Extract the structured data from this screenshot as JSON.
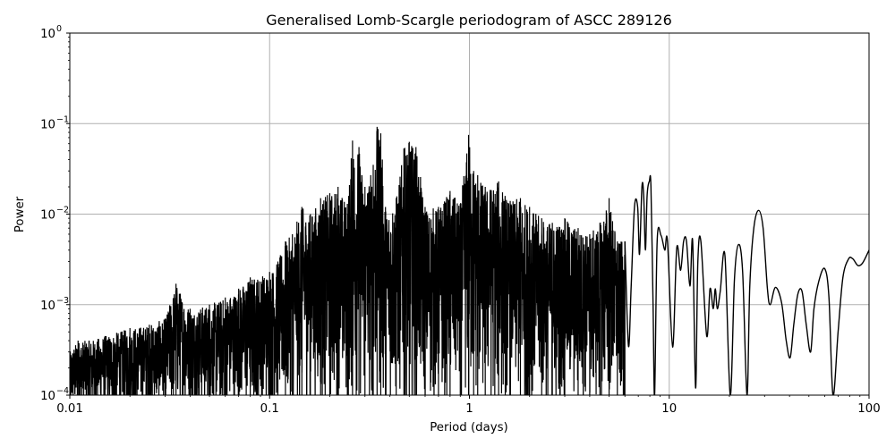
{
  "chart_data": {
    "type": "line",
    "title": "Generalised Lomb-Scargle periodogram of ASCC 289126",
    "xlabel": "Period (days)",
    "ylabel": "Power",
    "xscale": "log",
    "yscale": "log",
    "xlim": [
      0.01,
      100
    ],
    "ylim": [
      0.0001,
      1
    ],
    "grid": true,
    "legend": null,
    "xticks": [
      {
        "value": 0.01,
        "label": "0.01"
      },
      {
        "value": 0.1,
        "label": "0.1"
      },
      {
        "value": 1,
        "label": "1"
      },
      {
        "value": 10,
        "label": "10"
      },
      {
        "value": 100,
        "label": "100"
      }
    ],
    "yticks": [
      {
        "value": 1,
        "base": "10",
        "exp": "0"
      },
      {
        "value": 0.1,
        "base": "10",
        "exp": "−1"
      },
      {
        "value": 0.01,
        "base": "10",
        "exp": "−2"
      },
      {
        "value": 0.001,
        "base": "10",
        "exp": "−3"
      },
      {
        "value": 0.0001,
        "base": "10",
        "exp": "−4"
      }
    ],
    "line_color": "#000000",
    "grid_color": "#b0b0b0",
    "noisy_region": {
      "description": "dense oscillating periodogram; upper envelope of peaks",
      "envelope": [
        [
          0.01,
          0.0003
        ],
        [
          0.011,
          0.0004
        ],
        [
          0.0125,
          0.0004
        ],
        [
          0.015,
          0.00045
        ],
        [
          0.02,
          0.00055
        ],
        [
          0.025,
          0.0006
        ],
        [
          0.03,
          0.0007
        ],
        [
          0.034,
          0.0017
        ],
        [
          0.04,
          0.0009
        ],
        [
          0.05,
          0.001
        ],
        [
          0.06,
          0.0012
        ],
        [
          0.07,
          0.0015
        ],
        [
          0.08,
          0.002
        ],
        [
          0.1,
          0.0023
        ],
        [
          0.11,
          0.003
        ],
        [
          0.12,
          0.005
        ],
        [
          0.13,
          0.006
        ],
        [
          0.145,
          0.012
        ],
        [
          0.16,
          0.01
        ],
        [
          0.18,
          0.015
        ],
        [
          0.2,
          0.017
        ],
        [
          0.22,
          0.02
        ],
        [
          0.245,
          0.013
        ],
        [
          0.26,
          0.065
        ],
        [
          0.28,
          0.055
        ],
        [
          0.3,
          0.02
        ],
        [
          0.33,
          0.035
        ],
        [
          0.345,
          0.092
        ],
        [
          0.36,
          0.078
        ],
        [
          0.38,
          0.012
        ],
        [
          0.43,
          0.015
        ],
        [
          0.47,
          0.053
        ],
        [
          0.5,
          0.063
        ],
        [
          0.54,
          0.055
        ],
        [
          0.6,
          0.012
        ],
        [
          0.7,
          0.012
        ],
        [
          0.8,
          0.018
        ],
        [
          0.9,
          0.013
        ],
        [
          0.99,
          0.075
        ],
        [
          1.05,
          0.03
        ],
        [
          1.1,
          0.027
        ],
        [
          1.2,
          0.02
        ],
        [
          1.4,
          0.023
        ],
        [
          1.6,
          0.014
        ],
        [
          1.8,
          0.015
        ],
        [
          2.0,
          0.012
        ],
        [
          2.3,
          0.009
        ],
        [
          2.6,
          0.008
        ],
        [
          3.0,
          0.009
        ],
        [
          3.5,
          0.007
        ],
        [
          4.0,
          0.006
        ],
        [
          4.5,
          0.008
        ],
        [
          5.0,
          0.015
        ],
        [
          5.5,
          0.005
        ],
        [
          6.0,
          0.005
        ]
      ],
      "floor": 0.0001
    },
    "smooth_region": {
      "points": [
        [
          6.0,
          0.005
        ],
        [
          6.25,
          0.00035
        ],
        [
          6.45,
          0.0016
        ],
        [
          6.7,
          0.012
        ],
        [
          6.95,
          0.012
        ],
        [
          7.1,
          0.0036
        ],
        [
          7.3,
          0.02
        ],
        [
          7.45,
          0.016
        ],
        [
          7.6,
          0.004
        ],
        [
          7.75,
          0.016
        ],
        [
          7.95,
          0.023
        ],
        [
          8.1,
          0.02
        ],
        [
          8.3,
          0.001
        ],
        [
          8.45,
          0.0001
        ],
        [
          8.7,
          0.005
        ],
        [
          9.1,
          0.0058
        ],
        [
          9.5,
          0.004
        ],
        [
          9.8,
          0.005
        ],
        [
          10.4,
          0.00034
        ],
        [
          10.9,
          0.0042
        ],
        [
          11.4,
          0.0024
        ],
        [
          11.8,
          0.005
        ],
        [
          12.2,
          0.005
        ],
        [
          12.7,
          0.0016
        ],
        [
          13.1,
          0.005
        ],
        [
          13.55,
          0.00012
        ],
        [
          13.9,
          0.0029
        ],
        [
          14.4,
          0.005
        ],
        [
          15.4,
          0.00045
        ],
        [
          16.0,
          0.0015
        ],
        [
          16.6,
          0.0009
        ],
        [
          17.0,
          0.0015
        ],
        [
          17.4,
          0.0009
        ],
        [
          18.0,
          0.0014
        ],
        [
          19.0,
          0.0035
        ],
        [
          20.2,
          0.0001
        ],
        [
          21.2,
          0.0019
        ],
        [
          22.2,
          0.0046
        ],
        [
          23.3,
          0.0023
        ],
        [
          24.5,
          0.0001
        ],
        [
          25.3,
          0.0016
        ],
        [
          26.5,
          0.007
        ],
        [
          28.0,
          0.011
        ],
        [
          29.5,
          0.007
        ],
        [
          31.0,
          0.0015
        ],
        [
          32.0,
          0.001
        ],
        [
          34.0,
          0.00155
        ],
        [
          36.5,
          0.00105
        ],
        [
          38.5,
          0.0004
        ],
        [
          40.3,
          0.00026
        ],
        [
          42.0,
          0.0006
        ],
        [
          44.0,
          0.0013
        ],
        [
          46.2,
          0.0014
        ],
        [
          48.5,
          0.0006
        ],
        [
          51.0,
          0.0003
        ],
        [
          53.0,
          0.0009
        ],
        [
          56.0,
          0.0018
        ],
        [
          60.0,
          0.0025
        ],
        [
          63.0,
          0.0012
        ],
        [
          66.0,
          0.0001
        ],
        [
          70.0,
          0.0005
        ],
        [
          74.0,
          0.002
        ],
        [
          79.0,
          0.0032
        ],
        [
          83.0,
          0.0032
        ],
        [
          88.0,
          0.0027
        ],
        [
          93.0,
          0.0029
        ],
        [
          100.0,
          0.004
        ]
      ]
    }
  }
}
